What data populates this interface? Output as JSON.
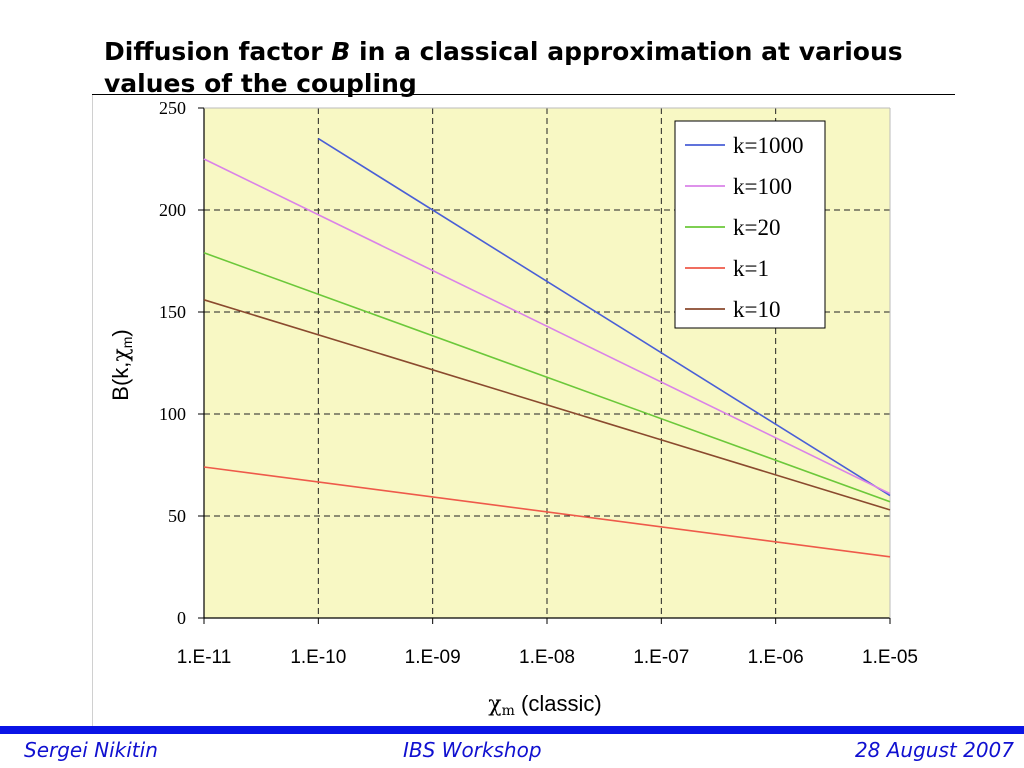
{
  "slide": {
    "title_pre": "Diffusion factor ",
    "title_var": "B",
    "title_post": " in a classical approximation at various values of the coupling"
  },
  "footer": {
    "author": "Sergei Nikitin",
    "event": "IBS Workshop",
    "date": "28 August 2007"
  },
  "chart_data": {
    "type": "line",
    "xlabel_symbol": "χ",
    "xlabel_sub": "m",
    "xlabel_rest": " (classic)",
    "ylabel_main": "B(k,",
    "ylabel_chi": "χ",
    "ylabel_sub": "m",
    "ylabel_close": ")",
    "x_scale": "log",
    "x_tick_labels": [
      "1.E-11",
      "1.E-10",
      "1.E-09",
      "1.E-08",
      "1.E-07",
      "1.E-06",
      "1.E-05"
    ],
    "x": [
      1e-11,
      1e-10,
      1e-09,
      1e-08,
      1e-07,
      1e-06,
      1e-05
    ],
    "ylim": [
      0,
      250
    ],
    "y_ticks": [
      0,
      50,
      100,
      150,
      200,
      250
    ],
    "grid": true,
    "background": "#f8f8c4",
    "legend_position": "top-right",
    "series": [
      {
        "name": "k=1000",
        "color": "#4a5fd6",
        "x": [
          1e-10,
          1e-05
        ],
        "values": [
          235,
          60
        ]
      },
      {
        "name": "k=100",
        "color": "#da82e8",
        "x": [
          1e-11,
          1e-05
        ],
        "values": [
          225,
          61
        ]
      },
      {
        "name": "k=20",
        "color": "#6cc83a",
        "x": [
          1e-11,
          1e-05
        ],
        "values": [
          179,
          57
        ]
      },
      {
        "name": "k=1",
        "color": "#ee5a4a",
        "x": [
          1e-11,
          1e-05
        ],
        "values": [
          74,
          30
        ]
      },
      {
        "name": "k=10",
        "color": "#8a4a2e",
        "x": [
          1e-11,
          1e-05
        ],
        "values": [
          156,
          53
        ]
      }
    ]
  }
}
